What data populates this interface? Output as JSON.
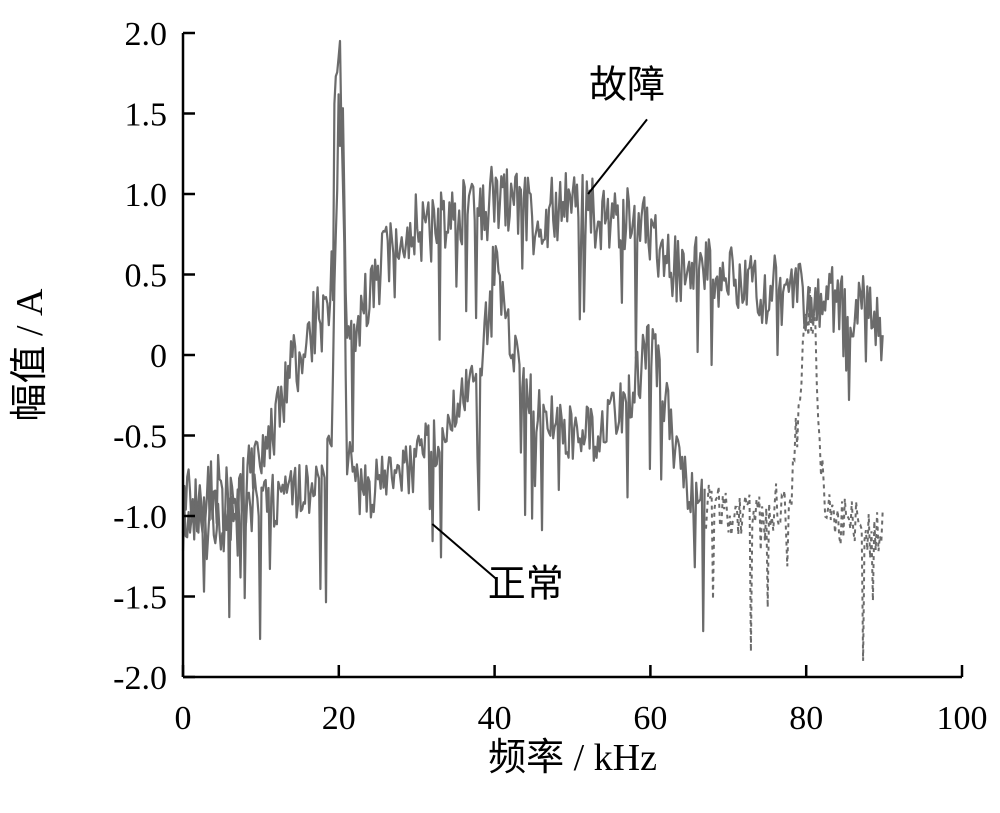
{
  "chart_data": {
    "type": "line",
    "xlabel": "频率 / kHz",
    "ylabel": "幅值 / A",
    "xlim": [
      0,
      100
    ],
    "ylim": [
      -2.0,
      2.0
    ],
    "xticks": [
      "0",
      "20",
      "40",
      "60",
      "80",
      "100"
    ],
    "yticks": [
      "2.0",
      "1.5",
      "1.0",
      "0.5",
      "0",
      "-0.5",
      "-1.0",
      "-1.5",
      "-2.0"
    ],
    "grid": false,
    "colors": {
      "line": "#6b6b6b",
      "axis": "#000000"
    },
    "series": [
      {
        "name": "故障",
        "x": [
          0,
          2,
          4,
          6,
          8,
          10,
          12,
          14,
          16,
          17,
          18,
          19,
          19.5,
          20,
          20.5,
          21,
          22,
          24,
          26,
          28,
          30,
          32,
          34,
          36,
          38,
          40,
          42,
          44,
          46,
          48,
          50,
          52,
          54,
          56,
          58,
          60,
          62,
          64,
          66,
          68,
          70,
          72,
          74,
          76,
          78,
          80,
          82,
          84,
          86,
          88,
          90
        ],
        "y": [
          -0.9,
          -0.95,
          -0.85,
          -0.8,
          -0.75,
          -0.6,
          -0.4,
          -0.1,
          0.1,
          0.2,
          0.3,
          0.4,
          1.5,
          1.9,
          1.45,
          0.3,
          0.1,
          0.4,
          0.6,
          0.8,
          0.8,
          0.75,
          0.85,
          0.9,
          0.85,
          1.0,
          0.95,
          0.9,
          0.85,
          0.9,
          0.95,
          0.9,
          0.85,
          0.85,
          0.8,
          0.75,
          0.6,
          0.5,
          0.55,
          0.5,
          0.45,
          0.45,
          0.4,
          0.4,
          0.35,
          0.35,
          0.3,
          0.35,
          0.3,
          0.3,
          0.15
        ]
      },
      {
        "name": "正常",
        "x": [
          0,
          2,
          4,
          6,
          8,
          10,
          12,
          14,
          16,
          18,
          19,
          20,
          20.5,
          21,
          22,
          24,
          26,
          28,
          30,
          32,
          34,
          36,
          38,
          39,
          40,
          41,
          42,
          44,
          46,
          48,
          50,
          52,
          54,
          56,
          58,
          60,
          62,
          63,
          64,
          66,
          68,
          70,
          72,
          74,
          76,
          78,
          80,
          81,
          82,
          84,
          86,
          88,
          90
        ],
        "y": [
          -0.9,
          -1.0,
          -1.05,
          -1.0,
          -0.95,
          -0.9,
          -0.9,
          -0.85,
          -0.85,
          -0.8,
          -0.6,
          1.5,
          1.3,
          -0.5,
          -0.8,
          -0.85,
          -0.8,
          -0.75,
          -0.65,
          -0.55,
          -0.4,
          -0.25,
          -0.1,
          0.2,
          0.6,
          0.3,
          0.05,
          -0.2,
          -0.35,
          -0.45,
          -0.5,
          -0.5,
          -0.45,
          -0.35,
          -0.2,
          0.1,
          -0.3,
          -0.6,
          -0.75,
          -0.85,
          -0.95,
          -1.0,
          -1.0,
          -1.0,
          -0.95,
          -0.9,
          0.3,
          0.2,
          -0.8,
          -1.0,
          -1.05,
          -1.1,
          -1.1
        ]
      }
    ],
    "annotations": [
      {
        "text": "故障",
        "target_x": 52,
        "target_y": 1.0,
        "label_x": 57,
        "label_y": 1.6
      },
      {
        "text": "正常",
        "target_x": 32,
        "target_y": -1.05,
        "label_x": 44,
        "label_y": -1.5
      }
    ]
  }
}
